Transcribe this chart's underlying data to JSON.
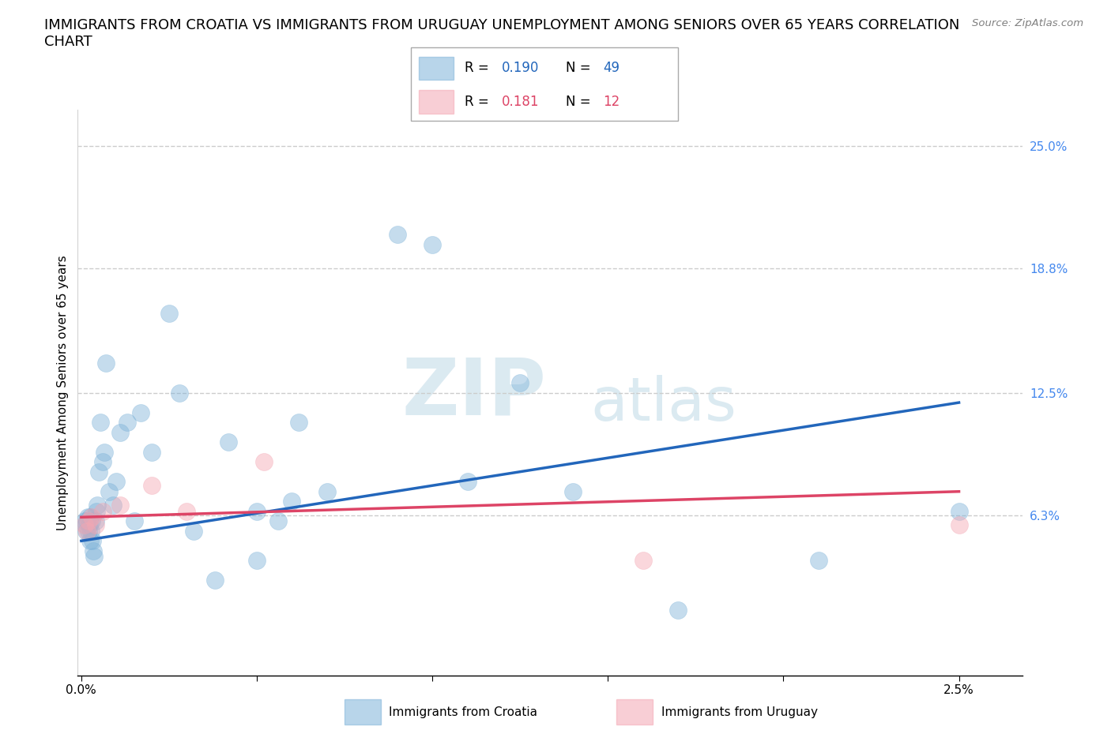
{
  "title_line1": "IMMIGRANTS FROM CROATIA VS IMMIGRANTS FROM URUGUAY UNEMPLOYMENT AMONG SENIORS OVER 65 YEARS CORRELATION",
  "title_line2": "CHART",
  "source": "Source: ZipAtlas.com",
  "ylabel": "Unemployment Among Seniors over 65 years",
  "legend_croatia": "Immigrants from Croatia",
  "legend_uruguay": "Immigrants from Uruguay",
  "R_croatia": 0.19,
  "N_croatia": 49,
  "R_uruguay": 0.181,
  "N_uruguay": 12,
  "xlim": [
    -0.0001,
    0.0268
  ],
  "ylim": [
    -0.018,
    0.268
  ],
  "right_yticks": [
    0.063,
    0.125,
    0.188,
    0.25
  ],
  "right_yticklabels": [
    "6.3%",
    "12.5%",
    "18.8%",
    "25.0%"
  ],
  "color_croatia": "#7FB3D9",
  "color_uruguay": "#F4A7B3",
  "line_color_croatia": "#2266BB",
  "line_color_uruguay": "#DD4466",
  "background_color": "#FFFFFF",
  "grid_color": "#CCCCCC",
  "title_fontsize": 13,
  "axis_label_fontsize": 11,
  "tick_fontsize": 11,
  "watermark_color": "#E0E8F0",
  "croatia_x": [
    0.0001,
    0.00012,
    0.00014,
    0.00016,
    0.00018,
    0.0002,
    0.00022,
    0.00024,
    0.00026,
    0.00028,
    0.0003,
    0.00032,
    0.00034,
    0.00036,
    0.0004,
    0.00042,
    0.00046,
    0.0005,
    0.00055,
    0.0006,
    0.00065,
    0.0007,
    0.0008,
    0.0009,
    0.001,
    0.0011,
    0.0013,
    0.0015,
    0.0017,
    0.002,
    0.0025,
    0.0028,
    0.0032,
    0.0038,
    0.0042,
    0.005,
    0.005,
    0.0056,
    0.006,
    0.0062,
    0.007,
    0.009,
    0.01,
    0.011,
    0.0125,
    0.014,
    0.017,
    0.021,
    0.025
  ],
  "croatia_y": [
    0.06,
    0.058,
    0.055,
    0.06,
    0.062,
    0.055,
    0.058,
    0.05,
    0.062,
    0.055,
    0.06,
    0.05,
    0.045,
    0.042,
    0.06,
    0.065,
    0.068,
    0.085,
    0.11,
    0.09,
    0.095,
    0.14,
    0.075,
    0.068,
    0.08,
    0.105,
    0.11,
    0.06,
    0.115,
    0.095,
    0.165,
    0.125,
    0.055,
    0.03,
    0.1,
    0.04,
    0.065,
    0.06,
    0.07,
    0.11,
    0.075,
    0.205,
    0.2,
    0.08,
    0.13,
    0.075,
    0.015,
    0.04,
    0.065
  ],
  "uruguay_x": [
    0.0001,
    0.00015,
    0.0002,
    0.0003,
    0.0004,
    0.0006,
    0.0011,
    0.002,
    0.003,
    0.0052,
    0.016,
    0.025
  ],
  "uruguay_y": [
    0.058,
    0.055,
    0.06,
    0.062,
    0.058,
    0.065,
    0.068,
    0.078,
    0.065,
    0.09,
    0.04,
    0.058
  ]
}
